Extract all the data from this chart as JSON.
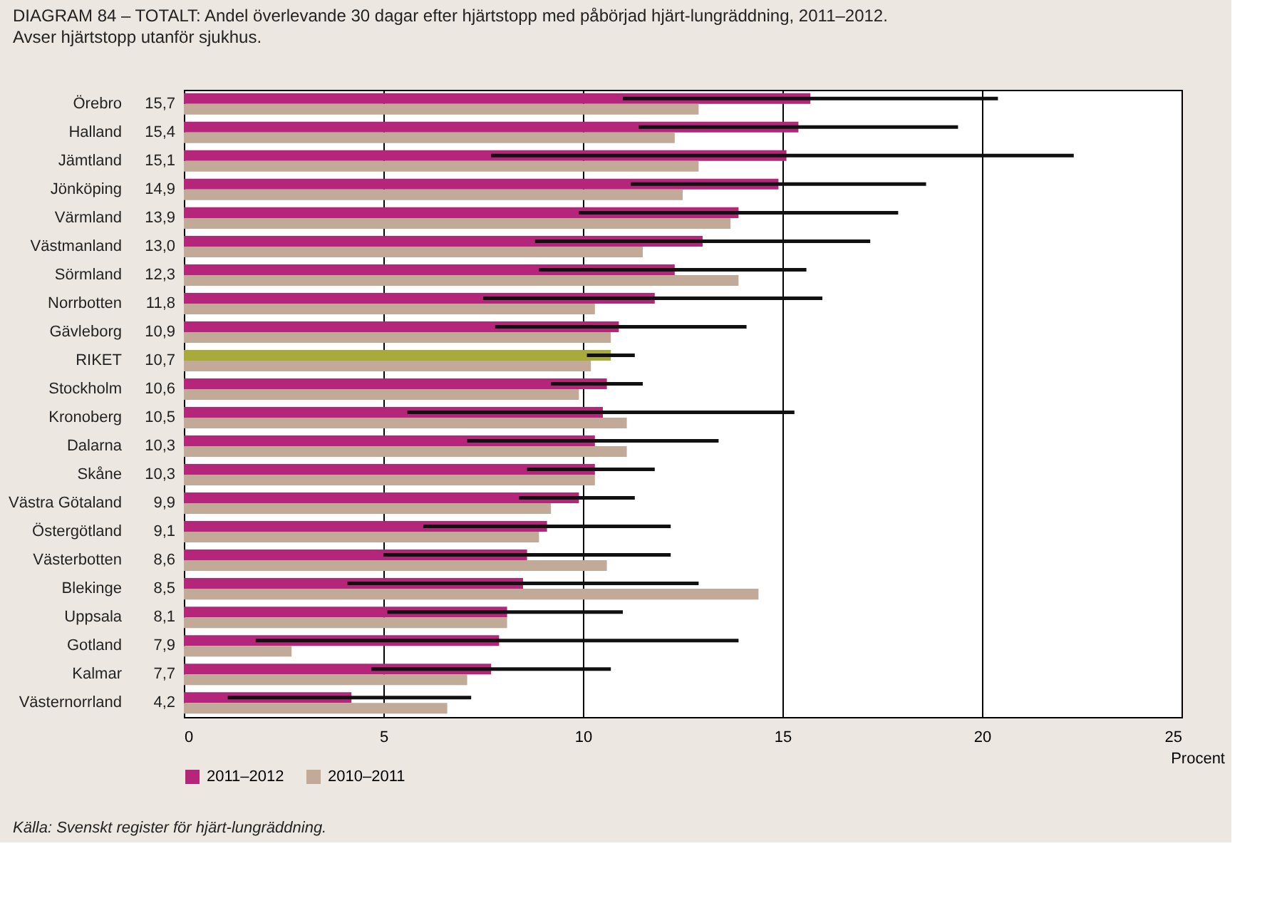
{
  "chart_data": {
    "type": "bar",
    "orientation": "horizontal",
    "title": "DIAGRAM 84 – TOTALT: Andel överlevande 30 dagar efter hjärtstopp med påbörjad hjärt-lungräddning, 2011–2012.",
    "subtitle": "Avser hjärtstopp utanför sjukhus.",
    "xlabel": "Procent",
    "annotations": [
      "Källa: Svenskt register för hjärt-lungräddning."
    ],
    "categories": [
      "Örebro",
      "Halland",
      "Jämtland",
      "Jönköping",
      "Värmland",
      "Västmanland",
      "Sörmland",
      "Norrbotten",
      "Gävleborg",
      "RIKET",
      "Stockholm",
      "Kronoberg",
      "Dalarna",
      "Skåne",
      "Västra Götaland",
      "Östergötland",
      "Västerbotten",
      "Blekinge",
      "Uppsala",
      "Gotland",
      "Kalmar",
      "Västernorrland"
    ],
    "series": [
      {
        "name": "2011–2012",
        "color": "#b5267a",
        "colors": [
          "#b5267a",
          "#b5267a",
          "#b5267a",
          "#b5267a",
          "#b5267a",
          "#b5267a",
          "#b5267a",
          "#b5267a",
          "#b5267a",
          "#a8aa3a",
          "#b5267a",
          "#b5267a",
          "#b5267a",
          "#b5267a",
          "#b5267a",
          "#b5267a",
          "#b5267a",
          "#b5267a",
          "#b5267a",
          "#b5267a",
          "#b5267a",
          "#b5267a"
        ],
        "values": [
          15.7,
          15.4,
          15.1,
          14.9,
          13.9,
          13.0,
          12.3,
          11.8,
          10.9,
          10.7,
          10.6,
          10.5,
          10.3,
          10.3,
          9.9,
          9.1,
          8.6,
          8.5,
          8.1,
          7.9,
          7.7,
          4.2
        ],
        "value_labels": [
          "15,7",
          "15,4",
          "15,1",
          "14,9",
          "13,9",
          "13,0",
          "12,3",
          "11,8",
          "10,9",
          "10,7",
          "10,6",
          "10,5",
          "10,3",
          "10,3",
          "9,9",
          "9,1",
          "8,6",
          "8,5",
          "8,1",
          "7,9",
          "7,7",
          "4,2"
        ],
        "errors": [
          [
            11.0,
            20.4
          ],
          [
            11.4,
            19.4
          ],
          [
            7.7,
            22.3
          ],
          [
            11.2,
            18.6
          ],
          [
            9.9,
            17.9
          ],
          [
            8.8,
            17.2
          ],
          [
            8.9,
            15.6
          ],
          [
            7.5,
            16.0
          ],
          [
            7.8,
            14.1
          ],
          [
            10.1,
            11.3
          ],
          [
            9.2,
            11.5
          ],
          [
            5.6,
            15.3
          ],
          [
            7.1,
            13.4
          ],
          [
            8.6,
            11.8
          ],
          [
            8.4,
            11.3
          ],
          [
            6.0,
            12.2
          ],
          [
            5.0,
            12.2
          ],
          [
            4.1,
            12.9
          ],
          [
            5.1,
            11.0
          ],
          [
            1.8,
            13.9
          ],
          [
            4.7,
            10.7
          ],
          [
            1.1,
            7.2
          ]
        ]
      },
      {
        "name": "2010–2011",
        "color": "#c1aa98",
        "values": [
          12.9,
          12.3,
          12.9,
          12.5,
          13.7,
          11.5,
          13.9,
          10.3,
          10.7,
          10.2,
          9.9,
          11.1,
          11.1,
          10.3,
          9.2,
          8.9,
          10.6,
          14.4,
          8.1,
          2.7,
          7.1,
          6.6
        ]
      }
    ],
    "xlim": [
      0,
      25
    ],
    "xticks": [
      0,
      5,
      10,
      15,
      20,
      25
    ],
    "grid": "x",
    "legend": "bottom left"
  }
}
